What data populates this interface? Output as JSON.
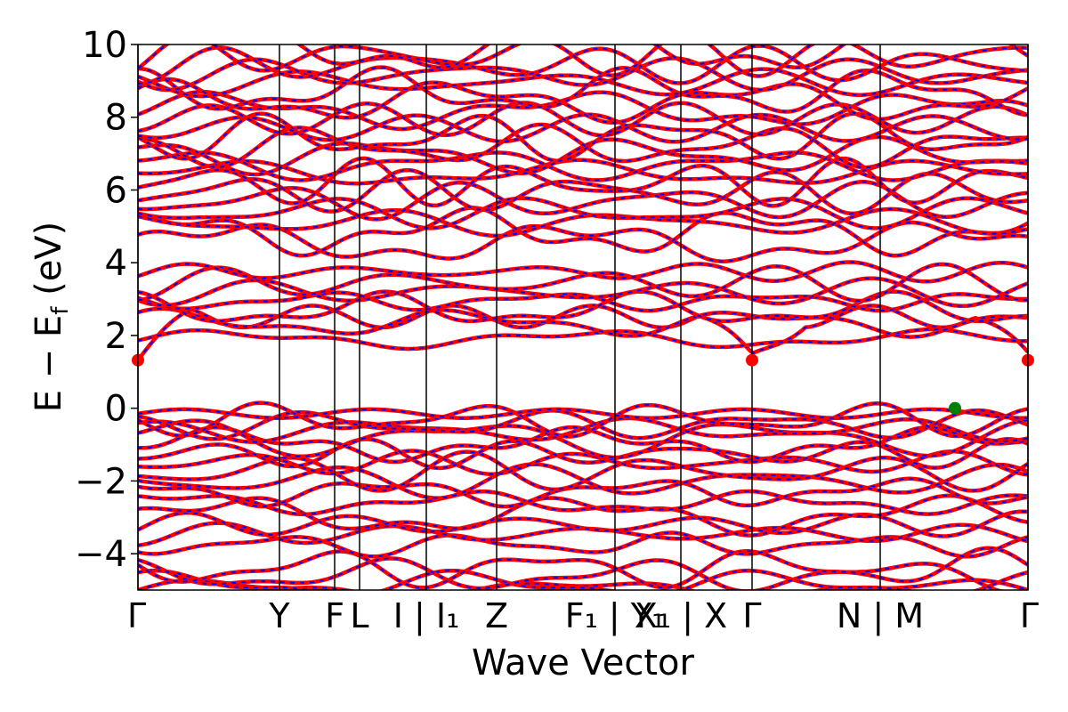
{
  "chart_data": {
    "type": "line",
    "title": "",
    "xlabel": "Wave Vector",
    "ylabel": "E − E",
    "ylabel_subscript": "f",
    "ylabel_unit": " (eV)",
    "ylim": [
      -5,
      10
    ],
    "yticks": [
      10,
      8,
      6,
      4,
      2,
      0,
      -2,
      -4
    ],
    "ytick_labels": [
      "10",
      "8",
      "6",
      "4",
      "2",
      "0",
      "−2",
      "−4"
    ],
    "xlim": [
      0,
      1
    ],
    "high_symmetry_points": [
      {
        "x": 0.0,
        "label": "Γ"
      },
      {
        "x": 0.159,
        "label": "Y"
      },
      {
        "x": 0.221,
        "label": "F"
      },
      {
        "x": 0.249,
        "label": "L"
      },
      {
        "x": 0.324,
        "label": "I | I₁"
      },
      {
        "x": 0.403,
        "label": "Z"
      },
      {
        "x": 0.536,
        "label": "F₁ | Y₁"
      },
      {
        "x": 0.61,
        "label": "X₁ | X"
      },
      {
        "x": 0.69,
        "label": "Γ"
      },
      {
        "x": 0.834,
        "label": "N | M"
      },
      {
        "x": 1.0,
        "label": "Γ"
      }
    ],
    "series": [
      {
        "role": "spin-up",
        "color": "#ff0000",
        "style": "solid"
      },
      {
        "role": "spin-down",
        "color": "#0000ff",
        "style": "dashed"
      }
    ],
    "cbm_markers": [
      {
        "x": 0.0,
        "y": 1.32,
        "color": "#ff0000"
      },
      {
        "x": 0.69,
        "y": 1.32,
        "color": "#ff0000"
      },
      {
        "x": 1.0,
        "y": 1.32,
        "color": "#ff0000"
      }
    ],
    "vbm_markers": [
      {
        "x": 0.918,
        "y": 0.0,
        "color": "#008000"
      }
    ],
    "grid": false,
    "legend": "none"
  }
}
